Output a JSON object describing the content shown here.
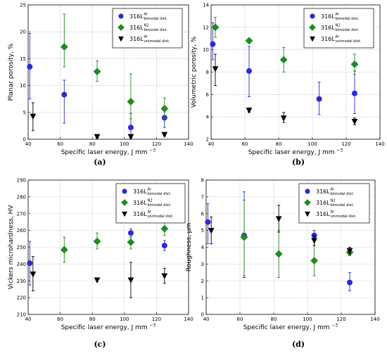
{
  "colors": {
    "blue": "#2b2bd6",
    "green": "#1e8c1e",
    "black": "#000000"
  },
  "series_style": [
    {
      "marker": "circle",
      "color": "#2b2bd6"
    },
    {
      "marker": "diamond",
      "color": "#1e8c1e"
    },
    {
      "marker": "triangle-down",
      "color": "#000000"
    }
  ],
  "chart_data": [
    {
      "type": "scatter",
      "caption": "(a)",
      "xlabel": "Specific laser energy, J mm",
      "xlabel_sup": "−3",
      "ylabel": "Planar porosity, %",
      "xlim": [
        40,
        140
      ],
      "ylim": [
        0,
        25
      ],
      "xticks": [
        40,
        60,
        80,
        100,
        120,
        140
      ],
      "yticks": [
        0,
        5,
        10,
        15,
        20,
        25
      ],
      "grid": true,
      "legend_position": "top-right",
      "series": [
        {
          "legend_base": "316L",
          "legend_sup": "Ar",
          "legend_sub": "bimodal dist.",
          "points": [
            {
              "x": 41,
              "y": 13.5,
              "lo": 7.5,
              "hi": 19.7
            },
            {
              "x": 62.5,
              "y": 8.3,
              "lo": 3.0,
              "hi": 11.0
            },
            {
              "x": 104,
              "y": 2.2,
              "lo": 0.4,
              "hi": 4.8
            },
            {
              "x": 125,
              "y": 4.0,
              "lo": 2.2,
              "hi": 6.0
            }
          ]
        },
        {
          "legend_base": "316L",
          "legend_sup": "N2",
          "legend_sub": "bimodal dist.",
          "points": [
            {
              "x": 62.5,
              "y": 17.2,
              "lo": 13.5,
              "hi": 23.3
            },
            {
              "x": 83,
              "y": 12.6,
              "lo": 10.8,
              "hi": 14.6
            },
            {
              "x": 104,
              "y": 7.0,
              "lo": 3.8,
              "hi": 12.2
            },
            {
              "x": 125,
              "y": 5.7,
              "lo": 3.9,
              "hi": 7.7
            }
          ]
        },
        {
          "legend_base": "316L",
          "legend_sup": "Ar",
          "legend_sub": "unimodal dist.",
          "points": [
            {
              "x": 43,
              "y": 4.3,
              "lo": 1.6,
              "hi": 6.8
            },
            {
              "x": 83,
              "y": 0.5,
              "lo": 0.2,
              "hi": 0.8
            },
            {
              "x": 104,
              "y": 0.5,
              "lo": 0.2,
              "hi": 0.8
            },
            {
              "x": 125,
              "y": 0.9,
              "lo": 0.6,
              "hi": 1.2
            }
          ]
        }
      ]
    },
    {
      "type": "scatter",
      "caption": "(b)",
      "xlabel": "Specific laser energy, J mm",
      "xlabel_sup": "−3",
      "ylabel": "Volumetric porosity, %",
      "xlim": [
        40,
        140
      ],
      "ylim": [
        2,
        14
      ],
      "xticks": [
        40,
        60,
        80,
        100,
        120,
        140
      ],
      "yticks": [
        2,
        4,
        6,
        8,
        10,
        12,
        14
      ],
      "grid": true,
      "legend_position": "top-right",
      "series": [
        {
          "legend_base": "316L",
          "legend_sup": "Ar",
          "legend_sub": "bimodal dist.",
          "points": [
            {
              "x": 41,
              "y": 10.5,
              "lo": 9.1,
              "hi": 12.4
            },
            {
              "x": 62.5,
              "y": 8.1,
              "lo": 5.8,
              "hi": 10.3
            },
            {
              "x": 104,
              "y": 5.6,
              "lo": 4.2,
              "hi": 7.1
            },
            {
              "x": 125,
              "y": 6.1,
              "lo": 4.3,
              "hi": 8.1
            }
          ]
        },
        {
          "legend_base": "316L",
          "legend_sup": "N2",
          "legend_sub": "bimodal dist.",
          "points": [
            {
              "x": 42.5,
              "y": 12.0,
              "lo": 11.1,
              "hi": 12.9
            },
            {
              "x": 62.5,
              "y": 10.8,
              "lo": 10.6,
              "hi": 11.0
            },
            {
              "x": 83,
              "y": 9.1,
              "lo": 8.0,
              "hi": 10.2
            },
            {
              "x": 125,
              "y": 8.7,
              "lo": 7.8,
              "hi": 9.6
            }
          ]
        },
        {
          "legend_base": "316L",
          "legend_sup": "Ar",
          "legend_sub": "unimodal dist.",
          "points": [
            {
              "x": 42.5,
              "y": 8.3,
              "lo": 6.8,
              "hi": 9.6
            },
            {
              "x": 62.5,
              "y": 4.6,
              "lo": 4.4,
              "hi": 4.8
            },
            {
              "x": 83,
              "y": 3.9,
              "lo": 3.5,
              "hi": 4.4
            },
            {
              "x": 125,
              "y": 3.6,
              "lo": 3.3,
              "hi": 3.9
            }
          ]
        }
      ]
    },
    {
      "type": "scatter",
      "caption": "(c)",
      "xlabel": "Specific laser energy, J mm",
      "xlabel_sup": "−3",
      "ylabel": "Vickers microhardness, HV",
      "xlim": [
        40,
        140
      ],
      "ylim": [
        210,
        290
      ],
      "xticks": [
        40,
        60,
        80,
        100,
        120,
        140
      ],
      "yticks": [
        210,
        220,
        230,
        240,
        250,
        260,
        270,
        280,
        290
      ],
      "grid": true,
      "legend_position": "top-right",
      "series": [
        {
          "legend_base": "316L",
          "legend_sup": "Ar",
          "legend_sub": "bimodal dist.",
          "points": [
            {
              "x": 41,
              "y": 240.5,
              "lo": 227.5,
              "hi": 253.5
            },
            {
              "x": 104,
              "y": 258.5,
              "lo": 256.0,
              "hi": 261.0
            },
            {
              "x": 125,
              "y": 251.0,
              "lo": 248.0,
              "hi": 254.0
            }
          ]
        },
        {
          "legend_base": "316L",
          "legend_sup": "N2",
          "legend_sub": "bimodal dist.",
          "points": [
            {
              "x": 62.5,
              "y": 248.5,
              "lo": 241.0,
              "hi": 256.0
            },
            {
              "x": 83,
              "y": 253.5,
              "lo": 249.0,
              "hi": 258.5
            },
            {
              "x": 104,
              "y": 253.0,
              "lo": 249.0,
              "hi": 257.0
            },
            {
              "x": 125,
              "y": 261.0,
              "lo": 257.0,
              "hi": 265.5
            }
          ]
        },
        {
          "legend_base": "316L",
          "legend_sup": "Ar",
          "legend_sub": "unimodal dist.",
          "points": [
            {
              "x": 43,
              "y": 234.0,
              "lo": 224.0,
              "hi": 244.5
            },
            {
              "x": 83,
              "y": 230.5,
              "lo": 229.8,
              "hi": 231.2
            },
            {
              "x": 104,
              "y": 230.5,
              "lo": 220.0,
              "hi": 241.0
            },
            {
              "x": 125,
              "y": 233.0,
              "lo": 228.5,
              "hi": 237.5
            }
          ]
        }
      ]
    },
    {
      "type": "scatter",
      "caption": "(d)",
      "xlabel": "Specific laser energy, J mm",
      "xlabel_sup": "−3",
      "ylabel": "Roughness, μm",
      "xlim": [
        40,
        140
      ],
      "ylim": [
        0,
        8
      ],
      "xticks": [
        40,
        60,
        80,
        100,
        120,
        140
      ],
      "yticks": [
        0,
        1,
        2,
        3,
        4,
        5,
        6,
        7,
        8
      ],
      "grid": true,
      "legend_position": "top-right",
      "series": [
        {
          "legend_base": "316L",
          "legend_sup": "Ar",
          "legend_sub": "bimodal dist.",
          "points": [
            {
              "x": 41,
              "y": 5.5,
              "lo": 4.2,
              "hi": 6.6
            },
            {
              "x": 62.5,
              "y": 4.7,
              "lo": 2.2,
              "hi": 7.3
            },
            {
              "x": 104,
              "y": 4.7,
              "lo": 4.4,
              "hi": 5.0
            },
            {
              "x": 125,
              "y": 1.9,
              "lo": 1.4,
              "hi": 2.5
            }
          ]
        },
        {
          "legend_base": "316L",
          "legend_sup": "N2",
          "legend_sub": "bimodal dist.",
          "points": [
            {
              "x": 62.5,
              "y": 4.6,
              "lo": 2.3,
              "hi": 6.8
            },
            {
              "x": 83,
              "y": 3.6,
              "lo": 2.2,
              "hi": 5.0
            },
            {
              "x": 104,
              "y": 3.2,
              "lo": 2.3,
              "hi": 4.1
            },
            {
              "x": 125,
              "y": 3.7,
              "lo": 3.5,
              "hi": 3.9
            }
          ]
        },
        {
          "legend_base": "316L",
          "legend_sup": "Ar",
          "legend_sub": "unimodal dist.",
          "points": [
            {
              "x": 43,
              "y": 5.0,
              "lo": 4.2,
              "hi": 5.8
            },
            {
              "x": 83,
              "y": 5.7,
              "lo": 4.9,
              "hi": 6.5
            },
            {
              "x": 104,
              "y": 4.4,
              "lo": 4.1,
              "hi": 4.7
            },
            {
              "x": 125,
              "y": 3.8,
              "lo": 3.6,
              "hi": 4.0
            }
          ]
        }
      ]
    }
  ]
}
